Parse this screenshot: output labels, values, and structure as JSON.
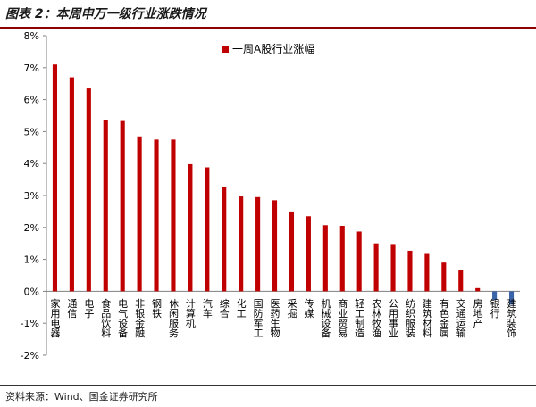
{
  "title": "图表 2：本周申万一级行业涨跌情况",
  "source": "资料来源：Wind、国金证券研究所",
  "colors": {
    "positive": "#c00000",
    "negative": "#3a63a8",
    "title_rule": "#8b0000"
  },
  "chart_data": {
    "type": "bar",
    "title": "",
    "xlabel": "",
    "ylabel": "",
    "ylim": [
      -2,
      8
    ],
    "yticks": [
      "-2%",
      "-1%",
      "0%",
      "1%",
      "2%",
      "3%",
      "4%",
      "5%",
      "6%",
      "7%",
      "8%"
    ],
    "legend_position": "top-right",
    "grid": false,
    "categories": [
      "家用电器",
      "通信",
      "电子",
      "食品饮料",
      "电气设备",
      "非银金融",
      "钢铁",
      "休闲服务",
      "计算机",
      "汽车",
      "综合",
      "化工",
      "国防军工",
      "医药生物",
      "采掘",
      "传媒",
      "机械设备",
      "商业贸易",
      "轻工制造",
      "农林牧渔",
      "公用事业",
      "纺织服装",
      "建筑材料",
      "有色金属",
      "交通运输",
      "房地产",
      "银行",
      "建筑装饰"
    ],
    "series": [
      {
        "name": "一周A股行业涨幅",
        "values": [
          7.1,
          6.7,
          6.35,
          5.35,
          5.33,
          4.85,
          4.75,
          4.75,
          3.98,
          3.88,
          3.27,
          2.97,
          2.95,
          2.85,
          2.5,
          2.35,
          2.07,
          2.05,
          1.87,
          1.5,
          1.48,
          1.27,
          1.17,
          0.9,
          0.68,
          0.1,
          -0.27,
          -0.42
        ]
      }
    ]
  }
}
